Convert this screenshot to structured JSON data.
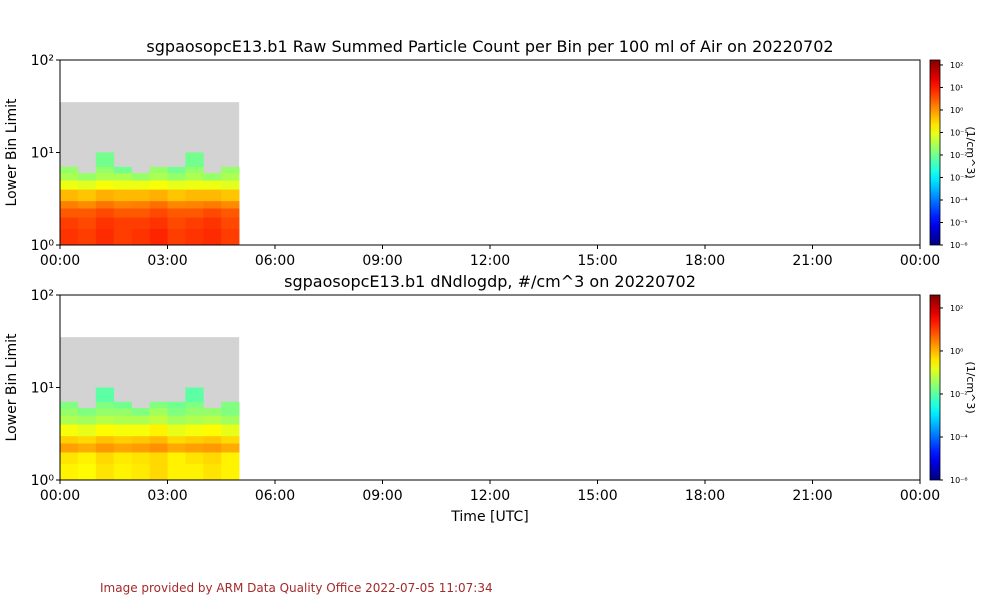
{
  "chart_data": [
    {
      "type": "heatmap",
      "title": "sgpaosopcE13.b1 Raw Summed Particle Count per Bin per 100 ml of Air on 20220702",
      "y_label": "Lower Bin Limit",
      "xlim": [
        0,
        24
      ],
      "xticks": [
        {
          "value": 0,
          "label": "00:00"
        },
        {
          "value": 3,
          "label": "03:00"
        },
        {
          "value": 6,
          "label": "06:00"
        },
        {
          "value": 9,
          "label": "09:00"
        },
        {
          "value": 12,
          "label": "12:00"
        },
        {
          "value": 15,
          "label": "15:00"
        },
        {
          "value": 18,
          "label": "18:00"
        },
        {
          "value": 21,
          "label": "21:00"
        },
        {
          "value": 24,
          "label": "00:00"
        }
      ],
      "ylim": [
        1,
        100
      ],
      "yticks": [
        {
          "value": 1,
          "label": "10⁰"
        },
        {
          "value": 10,
          "label": "10¹"
        },
        {
          "value": 100,
          "label": "10²"
        }
      ],
      "log_y": true,
      "x_bins": [
        0,
        0.5,
        1,
        1.5,
        2,
        2.5,
        3,
        3.5,
        4,
        4.5,
        5
      ],
      "y_bins": [
        1,
        1.5,
        2,
        2.5,
        3,
        4,
        5,
        6,
        7,
        10,
        35
      ],
      "values": [
        [
          6,
          5,
          7,
          5,
          6,
          8,
          5,
          6,
          7,
          5
        ],
        [
          5,
          4,
          6,
          5,
          5,
          6,
          4,
          5,
          6,
          4
        ],
        [
          3,
          3,
          4,
          3,
          3,
          4,
          3,
          3,
          4,
          3
        ],
        [
          1.5,
          1.2,
          1.8,
          1.4,
          1.5,
          2,
          1.3,
          1.4,
          1.6,
          1.2
        ],
        [
          0.5,
          0.4,
          0.6,
          0.5,
          0.5,
          0.6,
          0.4,
          0.5,
          0.5,
          0.4
        ],
        [
          0.1,
          0.08,
          0.12,
          0.1,
          0.1,
          0.12,
          0.09,
          0.1,
          0.1,
          0.08
        ],
        [
          0.03,
          0.02,
          0.03,
          0.03,
          0.02,
          0.03,
          0.02,
          0.03,
          0.02,
          0.03
        ],
        [
          0.02,
          null,
          0.02,
          0.01,
          null,
          0.02,
          0.01,
          0.02,
          null,
          0.02
        ],
        [
          null,
          null,
          0.01,
          null,
          null,
          null,
          null,
          0.01,
          null,
          null
        ],
        [
          null,
          null,
          null,
          null,
          null,
          null,
          null,
          null,
          null,
          null
        ]
      ],
      "colormap": "jet",
      "missing_color": "#d3d3d3",
      "clim": [
        1e-06,
        166
      ],
      "cticks": [
        {
          "value": 100,
          "label": "10²"
        },
        {
          "value": 10,
          "label": "10¹"
        },
        {
          "value": 1,
          "label": "10⁰"
        },
        {
          "value": 0.1,
          "label": "10⁻¹"
        },
        {
          "value": 0.01,
          "label": "10⁻²"
        },
        {
          "value": 0.001,
          "label": "10⁻³"
        },
        {
          "value": 0.0001,
          "label": "10⁻⁴"
        },
        {
          "value": 1e-05,
          "label": "10⁻⁵"
        },
        {
          "value": 1e-06,
          "label": "10⁻⁶"
        }
      ],
      "colorbar_label": "(1/cm^3)"
    },
    {
      "type": "heatmap",
      "title": "sgpaosopcE13.b1 dNdlogdp, #/cm^3 on 20220702",
      "y_label": "Lower Bin Limit",
      "x_label": "Time [UTC]",
      "xlim": [
        0,
        24
      ],
      "xticks": [
        {
          "value": 0,
          "label": "00:00"
        },
        {
          "value": 3,
          "label": "03:00"
        },
        {
          "value": 6,
          "label": "06:00"
        },
        {
          "value": 9,
          "label": "09:00"
        },
        {
          "value": 12,
          "label": "12:00"
        },
        {
          "value": 15,
          "label": "15:00"
        },
        {
          "value": 18,
          "label": "18:00"
        },
        {
          "value": 21,
          "label": "21:00"
        },
        {
          "value": 24,
          "label": "00:00"
        }
      ],
      "ylim": [
        1,
        100
      ],
      "yticks": [
        {
          "value": 1,
          "label": "10⁰"
        },
        {
          "value": 10,
          "label": "10¹"
        },
        {
          "value": 100,
          "label": "10²"
        }
      ],
      "log_y": true,
      "x_bins": [
        0,
        0.5,
        1,
        1.5,
        2,
        2.5,
        3,
        3.5,
        4,
        4.5,
        5
      ],
      "y_bins": [
        1,
        1.5,
        2,
        2.5,
        3,
        4,
        5,
        6,
        7,
        10,
        35
      ],
      "values": [
        [
          0.3,
          0.25,
          0.4,
          0.3,
          0.35,
          0.5,
          0.3,
          0.3,
          0.4,
          0.3
        ],
        [
          0.4,
          0.3,
          0.5,
          0.35,
          0.4,
          0.5,
          0.3,
          0.4,
          0.5,
          0.3
        ],
        [
          1.5,
          1.2,
          1.8,
          1.4,
          1.6,
          2,
          1.3,
          1.5,
          1.7,
          1.2
        ],
        [
          0.6,
          0.5,
          0.8,
          0.6,
          0.7,
          0.9,
          0.5,
          0.6,
          0.7,
          0.5
        ],
        [
          0.2,
          0.15,
          0.25,
          0.2,
          0.2,
          0.3,
          0.15,
          0.2,
          0.25,
          0.15
        ],
        [
          0.05,
          0.04,
          0.06,
          0.05,
          0.05,
          0.07,
          0.04,
          0.05,
          0.06,
          0.04
        ],
        [
          0.03,
          0.02,
          0.03,
          0.03,
          0.02,
          0.04,
          0.02,
          0.03,
          0.03,
          0.02
        ],
        [
          0.02,
          null,
          0.02,
          0.015,
          null,
          0.02,
          0.015,
          0.02,
          null,
          0.02
        ],
        [
          null,
          null,
          0.01,
          null,
          null,
          null,
          null,
          0.01,
          null,
          null
        ],
        [
          null,
          null,
          null,
          null,
          null,
          null,
          null,
          null,
          null,
          null
        ]
      ],
      "colormap": "jet",
      "missing_color": "#d3d3d3",
      "clim": [
        1e-06,
        400
      ],
      "cticks": [
        {
          "value": 100,
          "label": "10²"
        },
        {
          "value": 1,
          "label": "10⁰"
        },
        {
          "value": 0.01,
          "label": "10⁻²"
        },
        {
          "value": 0.0001,
          "label": "10⁻⁴"
        },
        {
          "value": 1e-06,
          "label": "10⁻⁶"
        }
      ],
      "colorbar_label": "(1/cm^3)"
    }
  ],
  "footer": "Image provided by ARM Data Quality Office 2022-07-05 11:07:34"
}
